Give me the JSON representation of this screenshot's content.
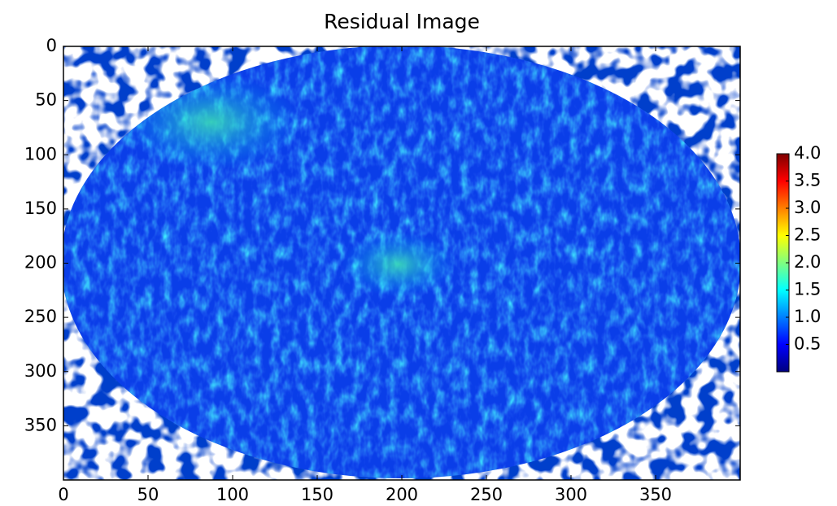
{
  "chart_data": {
    "type": "image",
    "title": "Residual Image",
    "xlim": [
      0,
      400
    ],
    "ylim": [
      400,
      0
    ],
    "xticks": [
      0,
      50,
      100,
      150,
      200,
      250,
      300,
      350
    ],
    "yticks": [
      0,
      50,
      100,
      150,
      200,
      250,
      300,
      350
    ],
    "colormap": "jet",
    "colorbar": {
      "clim": [
        0,
        4
      ],
      "ticks": [
        0.5,
        {
          "value": 1,
          "label": "1.0"
        },
        1.5,
        {
          "value": 2,
          "label": "2.0"
        },
        2.5,
        {
          "value": 3,
          "label": "3.0"
        },
        3.5,
        {
          "value": 4,
          "label": "4.0"
        }
      ]
    }
  }
}
